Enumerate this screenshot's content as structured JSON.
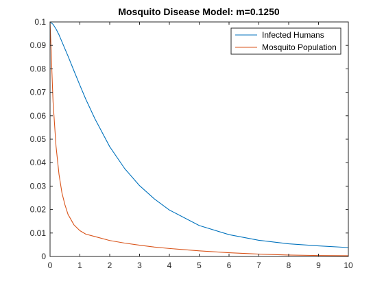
{
  "chart_data": {
    "type": "line",
    "title": "Mosquito Disease Model: m=0.1250",
    "xlabel": "",
    "ylabel": "",
    "xlim": [
      0,
      10
    ],
    "ylim": [
      0,
      0.1
    ],
    "x_ticks": [
      0,
      1,
      2,
      3,
      4,
      5,
      6,
      7,
      8,
      9,
      10
    ],
    "x_tick_labels": [
      "0",
      "1",
      "2",
      "3",
      "4",
      "5",
      "6",
      "7",
      "8",
      "9",
      "10"
    ],
    "y_ticks": [
      0,
      0.01,
      0.02,
      0.03,
      0.04,
      0.05,
      0.06,
      0.07,
      0.08,
      0.09,
      0.1
    ],
    "y_tick_labels": [
      "0",
      "0.01",
      "0.02",
      "0.03",
      "0.04",
      "0.05",
      "0.06",
      "0.07",
      "0.08",
      "0.09",
      "0.1"
    ],
    "grid": false,
    "legend_position": "top-right",
    "x": [
      0,
      0.1,
      0.2,
      0.3,
      0.4,
      0.5,
      0.6,
      0.8,
      1.0,
      1.2,
      1.5,
      2,
      2.5,
      3,
      3.5,
      4,
      5,
      6,
      7,
      8,
      9,
      10
    ],
    "series": [
      {
        "name": "Infected Humans",
        "color": "#0072BD",
        "values": [
          0.1,
          0.099,
          0.097,
          0.0945,
          0.0915,
          0.0885,
          0.0855,
          0.0792,
          0.073,
          0.067,
          0.0588,
          0.0468,
          0.0375,
          0.0302,
          0.0245,
          0.0198,
          0.0132,
          0.0093,
          0.0069,
          0.0054,
          0.0045,
          0.0038
        ]
      },
      {
        "name": "Mosquito Population",
        "color": "#D95319",
        "values": [
          0.1,
          0.066,
          0.047,
          0.035,
          0.027,
          0.022,
          0.018,
          0.0135,
          0.011,
          0.0095,
          0.0085,
          0.0068,
          0.0057,
          0.0048,
          0.004,
          0.0034,
          0.0024,
          0.0016,
          0.001,
          0.0006,
          0.0004,
          0.0003
        ]
      }
    ]
  }
}
